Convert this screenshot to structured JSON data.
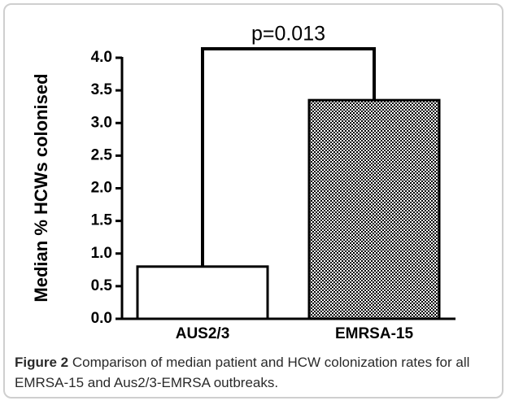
{
  "chart_data": {
    "type": "bar",
    "y_label": "Median % HCWs colonised",
    "categories": [
      "AUS2/3",
      "EMRSA-15"
    ],
    "values": [
      0.8,
      3.35
    ],
    "fills": [
      "#ffffff",
      "checkered"
    ],
    "ylim": [
      0,
      4.0
    ],
    "yticks": [
      {
        "value": 0,
        "label": "0.0"
      },
      0.5,
      {
        "value": 1,
        "label": "1.0"
      },
      1.5,
      {
        "value": 2,
        "label": "2.0"
      },
      2.5,
      {
        "value": 3,
        "label": "3.0"
      },
      3.5,
      {
        "value": 4,
        "label": "4.0"
      }
    ],
    "annotation": "p=0.013"
  },
  "figure": {
    "label": "Figure 2",
    "caption": "Comparison of median patient and HCW colonization rates for all EMRSA-15 and Aus2/3-EMRSA outbreaks."
  }
}
